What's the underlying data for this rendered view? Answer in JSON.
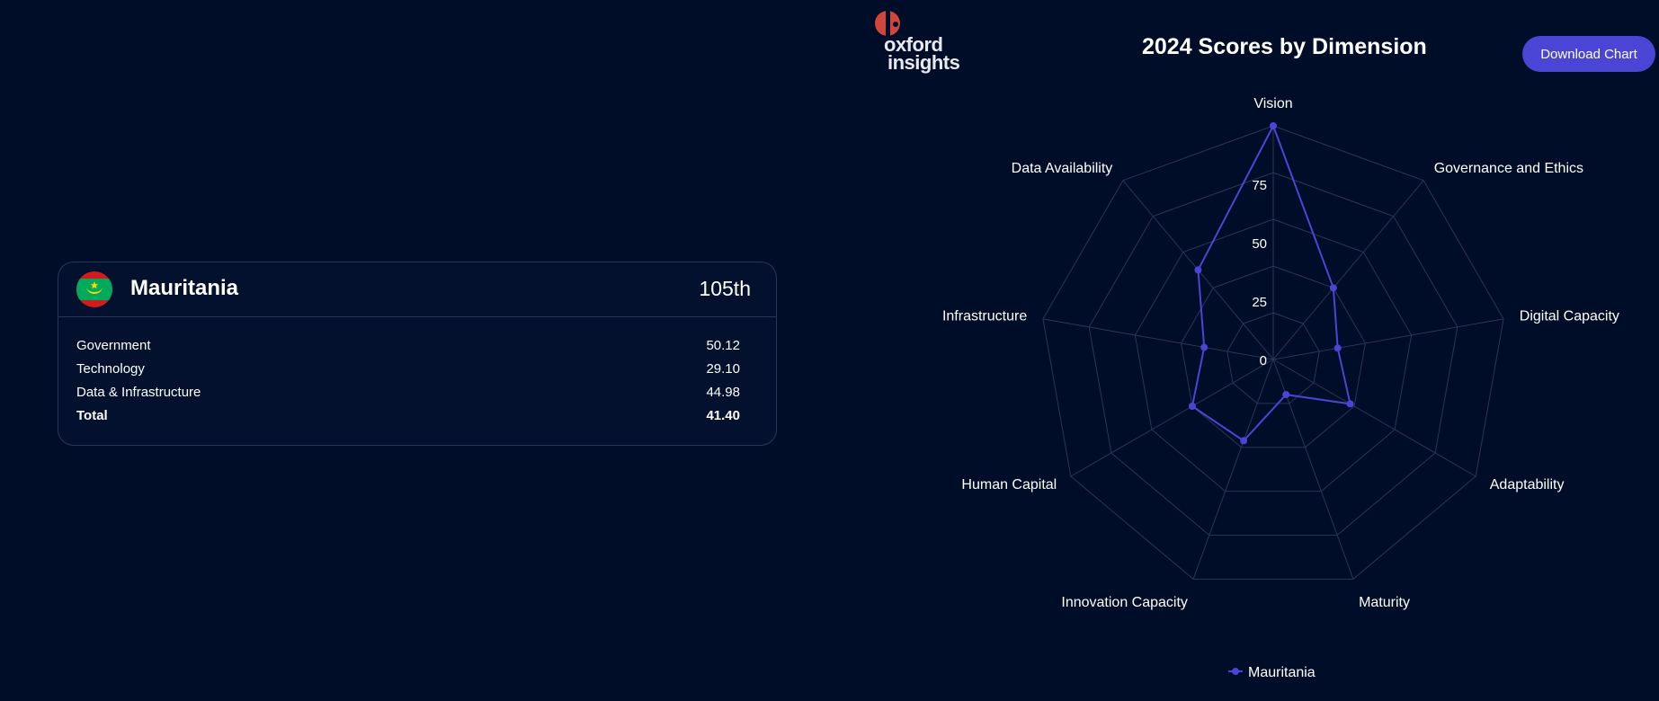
{
  "card": {
    "country": "Mauritania",
    "rank": "105th",
    "rows": [
      {
        "label": "Government",
        "value": "50.12"
      },
      {
        "label": "Technology",
        "value": "29.10"
      },
      {
        "label": "Data & Infrastructure",
        "value": "44.98"
      }
    ],
    "total": {
      "label": "Total",
      "value": "41.40"
    }
  },
  "logo": {
    "line1": "oxford",
    "line2": "insights"
  },
  "download_label": "Download Chart",
  "colors": {
    "background": "#000d28",
    "series": "#4b45d6",
    "logo_red": "#d2453a"
  },
  "chart_data": {
    "type": "radar",
    "title": "2024 Scores by Dimension",
    "axes": [
      "Vision",
      "Governance and Ethics",
      "Digital Capacity",
      "Adaptability",
      "Maturity",
      "Innovation Capacity",
      "Human Capital",
      "Infrastructure",
      "Data Availability"
    ],
    "range": [
      0,
      100
    ],
    "ticks": [
      0,
      25,
      50,
      75
    ],
    "series": [
      {
        "name": "Mauritania",
        "values": [
          100,
          40,
          28,
          38,
          16,
          37,
          40,
          30,
          50
        ]
      }
    ],
    "legend": "bottom"
  }
}
